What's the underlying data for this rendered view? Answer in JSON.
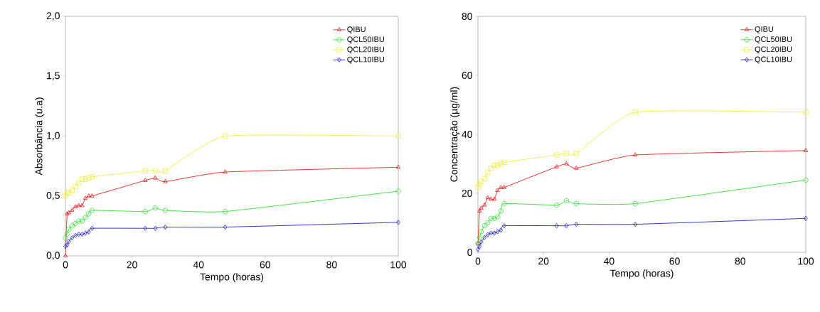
{
  "chart_data": [
    {
      "type": "line",
      "xlabel": "Tempo (horas)",
      "ylabel": "Absorbância (u.a)",
      "xlim": [
        0,
        100
      ],
      "ylim": [
        0,
        2
      ],
      "xticks": [
        0,
        20,
        40,
        60,
        80,
        100
      ],
      "yticks": [
        {
          "value": 0,
          "label": "0,0"
        },
        {
          "value": 0.5,
          "label": "0,5"
        },
        {
          "value": 1,
          "label": "1,0"
        },
        {
          "value": 1.5,
          "label": "1,5"
        },
        {
          "value": 2,
          "label": "2,0"
        }
      ],
      "legend": "top right",
      "grid": false,
      "line_style": "solid",
      "x": [
        0,
        0.5,
        1,
        2,
        3,
        4,
        5,
        6,
        7,
        8,
        24,
        27,
        30,
        48,
        100
      ],
      "series": [
        {
          "name": "QIBU",
          "color": "#e02020",
          "marker": "triangle",
          "values": [
            0.0,
            0.35,
            0.36,
            0.38,
            0.41,
            0.42,
            0.42,
            0.48,
            0.5,
            0.5,
            0.63,
            0.65,
            0.62,
            0.7,
            0.74
          ]
        },
        {
          "name": "QCL50IBU",
          "color": "#33dd33",
          "marker": "circle",
          "values": [
            0.15,
            0.18,
            0.22,
            0.25,
            0.27,
            0.29,
            0.29,
            0.32,
            0.35,
            0.38,
            0.37,
            0.4,
            0.38,
            0.37,
            0.54
          ]
        },
        {
          "name": "QCL20IBU",
          "color": "#eeee44",
          "marker": "square",
          "values": [
            0.5,
            0.52,
            0.53,
            0.55,
            0.58,
            0.61,
            0.64,
            0.64,
            0.65,
            0.66,
            0.71,
            0.71,
            0.71,
            1.0,
            1.0
          ]
        },
        {
          "name": "QCL10IBU",
          "color": "#2020c0",
          "marker": "diamond",
          "values": [
            0.08,
            0.09,
            0.12,
            0.15,
            0.17,
            0.18,
            0.18,
            0.19,
            0.2,
            0.23,
            0.23,
            0.23,
            0.24,
            0.24,
            0.28
          ]
        }
      ]
    },
    {
      "type": "line",
      "xlabel": "Tempo (horas)",
      "ylabel": "Concentração (µg/ml)",
      "xlim": [
        0,
        100
      ],
      "ylim": [
        0,
        80
      ],
      "xticks": [
        0,
        20,
        40,
        60,
        80,
        100
      ],
      "yticks": [
        0,
        20,
        40,
        60,
        80
      ],
      "legend": "top right",
      "grid": false,
      "line_style": "solid",
      "x": [
        0,
        0.5,
        1,
        2,
        3,
        4,
        5,
        6,
        7,
        8,
        24,
        27,
        30,
        48,
        100
      ],
      "series": [
        {
          "name": "QIBU",
          "color": "#e02020",
          "marker": "triangle",
          "values": [
            3,
            14,
            15,
            16,
            18.5,
            18,
            18,
            21,
            22,
            22,
            29,
            30,
            28.5,
            33,
            34.5
          ]
        },
        {
          "name": "QCL50IBU",
          "color": "#33dd33",
          "marker": "circle",
          "values": [
            3,
            5,
            7,
            9,
            10,
            11.5,
            11.5,
            12,
            14,
            16.5,
            16,
            17.5,
            16.5,
            16.5,
            24.5
          ]
        },
        {
          "name": "QCL20IBU",
          "color": "#eeee44",
          "marker": "square",
          "values": [
            22,
            23,
            24,
            25,
            27,
            28.5,
            29.5,
            29.5,
            30,
            30.5,
            33,
            33.5,
            33.5,
            47.5,
            47.5
          ]
        },
        {
          "name": "QCL10IBU",
          "color": "#2020c0",
          "marker": "diamond",
          "values": [
            1,
            2,
            3.5,
            5,
            6,
            6.5,
            6.5,
            7,
            7.5,
            9,
            9,
            9,
            9.5,
            9.5,
            11.5
          ]
        }
      ]
    }
  ]
}
